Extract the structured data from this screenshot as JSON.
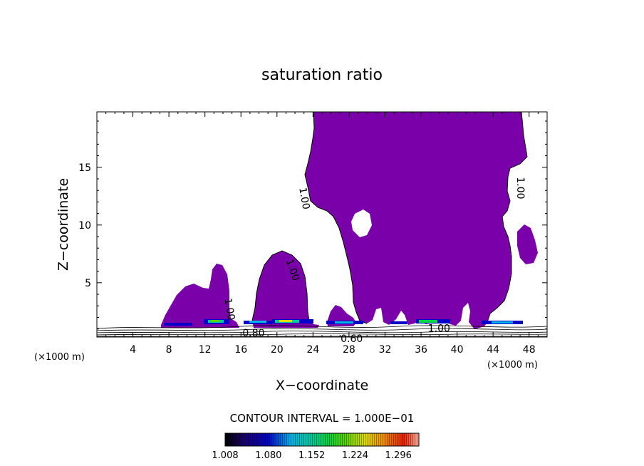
{
  "chart_data": {
    "type": "contour",
    "title": "saturation ratio",
    "xlabel": "X−coordinate",
    "ylabel": "Z−coordinate",
    "x_unit_left": "(×1000 m)",
    "x_unit_right": "(×1000 m)",
    "xlim": [
      0,
      50
    ],
    "ylim": [
      0.3,
      19.8
    ],
    "x_ticks": [
      4,
      8,
      12,
      16,
      20,
      24,
      28,
      32,
      36,
      40,
      44,
      48
    ],
    "y_ticks": [
      5,
      10,
      15
    ],
    "fill_color": "#7a00aa",
    "contour_labels": [
      {
        "text": "1.00",
        "x": 23.0,
        "y": 12.3,
        "angle": 80
      },
      {
        "text": "1.00",
        "x": 21.7,
        "y": 6.1,
        "angle": 70
      },
      {
        "text": "1.00",
        "x": 47.0,
        "y": 13.2,
        "angle": 90
      },
      {
        "text": "1.00",
        "x": 14.7,
        "y": 2.7,
        "angle": 80
      },
      {
        "text": "1.00",
        "x": 38.0,
        "y": 1.0,
        "angle": 0
      },
      {
        "text": "0.80",
        "x": 17.4,
        "y": 0.6,
        "angle": 0
      },
      {
        "text": "0.60",
        "x": 28.3,
        "y": 0.1,
        "angle": 0
      }
    ],
    "contour_interval": "CONTOUR INTERVAL = 1.000E−01",
    "colorbar": {
      "ticks": [
        "1.008",
        "1.080",
        "1.152",
        "1.224",
        "1.296"
      ],
      "min": 1.008,
      "max": 1.33
    }
  }
}
